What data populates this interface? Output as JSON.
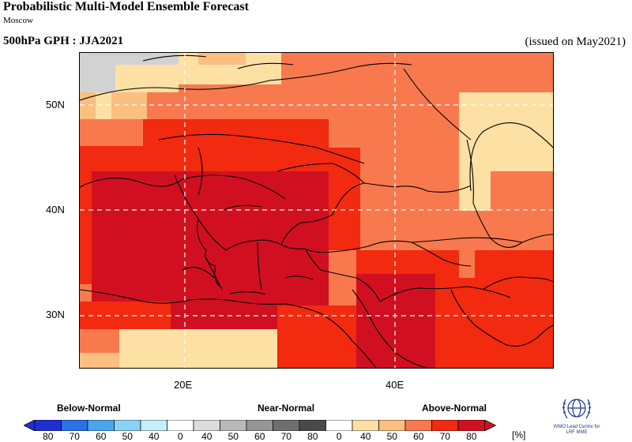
{
  "header": {
    "title": "Probabilistic Multi-Model Ensemble Forecast",
    "subtitle": "Moscow",
    "season": "500hPa GPH : JJA2021",
    "issued": "(issued on May2021)"
  },
  "map": {
    "lat_labels": [
      "50N",
      "40N",
      "30N"
    ],
    "lon_labels": [
      "20E",
      "40E"
    ],
    "colors": {
      "an40": "#fde0a3",
      "an50": "#fbbf80",
      "an60": "#f8794e",
      "an70": "#f12a10",
      "an80": "#d01020",
      "nn40": "#d2d2d2",
      "border": "#000000",
      "grid": "#ffffff"
    }
  },
  "legend": {
    "categories": [
      "Below-Normal",
      "Near-Normal",
      "Above-Normal"
    ],
    "ticks": [
      "80",
      "70",
      "60",
      "50",
      "40",
      "0",
      "40",
      "50",
      "60",
      "70",
      "80",
      "0",
      "40",
      "50",
      "60",
      "70",
      "80"
    ],
    "unit": "[%]",
    "colors": [
      "#1f2fd0",
      "#2a70e6",
      "#4aa6f0",
      "#8ad3f6",
      "#c5f0fb",
      "#ffffff",
      "#dcdcdc",
      "#b9b9b9",
      "#969696",
      "#6f6f6f",
      "#4a4a4a",
      "#ffffff",
      "#fde0a3",
      "#fbbf80",
      "#f8794e",
      "#f12a10",
      "#d01020"
    ]
  },
  "logo": {
    "name": "wmo-emblem-icon",
    "text": "WMO Lead Centre for LRF MME"
  }
}
